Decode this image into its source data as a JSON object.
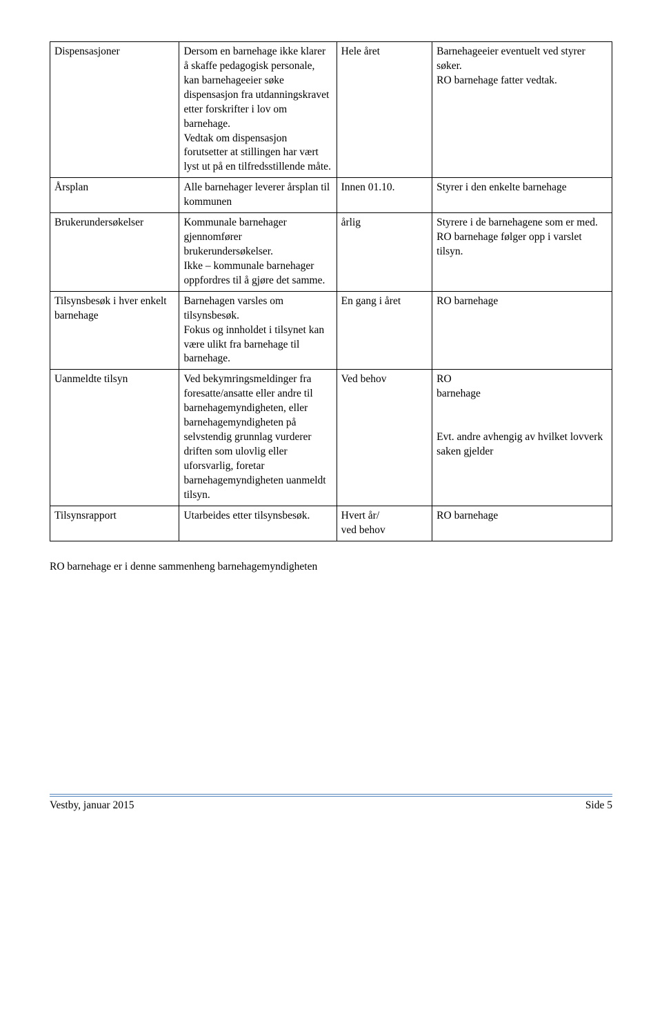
{
  "table": {
    "columns": 4,
    "rows": [
      {
        "c1": "Dispensasjoner",
        "c2": "Dersom en barnehage ikke klarer å skaffe pedagogisk personale, kan barnehageeier søke dispensasjon fra utdanningskravet etter forskrifter i lov om barnehage.\nVedtak om dispensasjon forutsetter at stillingen har vært lyst ut på en tilfredsstillende måte.",
        "c3": "Hele året",
        "c4": "Barnehageeier eventuelt ved styrer søker.\nRO barnehage fatter vedtak."
      },
      {
        "c1": "Årsplan",
        "c2": "Alle barnehager leverer årsplan til kommunen",
        "c3": "Innen 01.10.",
        "c4": "Styrer i den enkelte barnehage"
      },
      {
        "c1": "Brukerundersøkelser",
        "c2": "Kommunale barnehager gjennomfører brukerundersøkelser.\nIkke – kommunale barnehager\noppfordres til å gjøre det samme.",
        "c3": "årlig",
        "c4": "Styrere i de barnehagene som er med.\nRO barnehage følger opp i varslet tilsyn."
      },
      {
        "c1": "Tilsynsbesøk i hver enkelt barnehage",
        "c2": "Barnehagen varsles om tilsynsbesøk.\nFokus og innholdet i tilsynet kan være ulikt fra barnehage til barnehage.",
        "c3": "En gang i året",
        "c4": "RO barnehage"
      },
      {
        "c1": "Uanmeldte tilsyn",
        "c2": "Ved bekymringsmeldinger fra foresatte/ansatte eller andre til barnehagemyndigheten, eller barnehagemyndigheten på selvstendig grunnlag vurderer driften som ulovlig eller uforsvarlig, foretar barnehagemyndigheten uanmeldt tilsyn.",
        "c3": "Ved behov",
        "c4": "RO\nbarnehage\n\nEvt. andre avhengig av hvilket lovverk saken gjelder"
      },
      {
        "c1": "Tilsynsrapport",
        "c2": "Utarbeides etter tilsynsbesøk.",
        "c3": "Hvert år/\nved behov",
        "c4": "RO barnehage"
      }
    ],
    "border_color": "#000000",
    "font_size": 15.5
  },
  "after_text": "RO barnehage er i denne sammenheng barnehagemyndigheten",
  "footer": {
    "left": "Vestby, januar 2015",
    "right": "Side 5",
    "rule_color": "#4f81bd"
  }
}
